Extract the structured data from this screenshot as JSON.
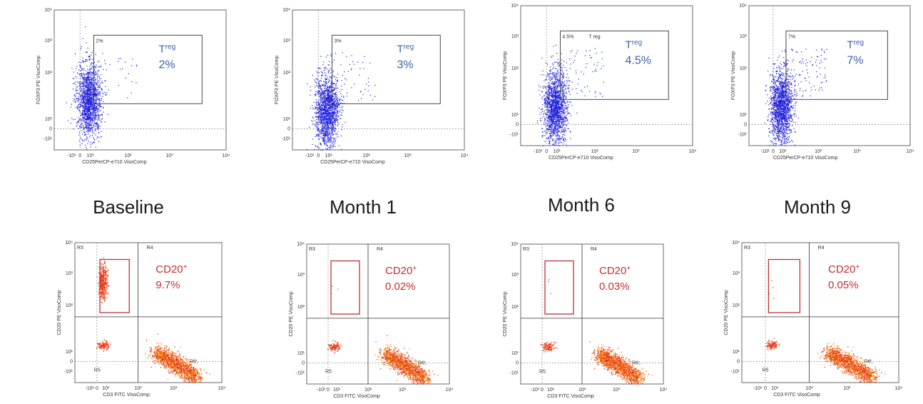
{
  "timepoints": [
    "Baseline",
    "Month 1",
    "Month 6",
    "Month 9"
  ],
  "colors": {
    "treg_dots": "#1a1adb",
    "treg_text": "#3b5fa6",
    "cd20_text": "#c0302f",
    "cd20_dots": "#e8401c",
    "gate_red": "#c0302f"
  },
  "chart_data": [
    {
      "type": "scatter",
      "panel": "Baseline Treg",
      "xlabel": "CD25PerCP-e710 VisoComp",
      "ylabel": "FOXP3 PE VisoComp",
      "x_ticks": [
        "-10¹",
        "0",
        "10¹",
        "10²",
        "10³",
        "10⁴"
      ],
      "y_ticks": [
        "10⁴",
        "10³",
        "10²",
        "10¹",
        "0",
        "-10¹"
      ],
      "gate_label": "2%",
      "annotation_name": "T",
      "annotation_sup": "reg",
      "annotation_value": "2%",
      "treg_percent": 2
    },
    {
      "type": "scatter",
      "panel": "Month 1 Treg",
      "xlabel": "CD25PerCP-e710 VisoComp",
      "ylabel": "FOXP3 PE VisoComp",
      "x_ticks": [
        "-10¹",
        "0",
        "10¹",
        "10²",
        "10³",
        "10⁴"
      ],
      "y_ticks": [
        "10⁴",
        "10³",
        "10²",
        "10¹",
        "0",
        "-10¹"
      ],
      "gate_label": "3%",
      "annotation_name": "T",
      "annotation_sup": "reg",
      "annotation_value": "3%",
      "treg_percent": 3
    },
    {
      "type": "scatter",
      "panel": "Month 6 Treg",
      "xlabel": "CD25PerCP-e710 VisoComp",
      "ylabel": "FOXP3 PE VisoComp",
      "x_ticks": [
        "-10¹",
        "0",
        "10¹",
        "10²",
        "10³",
        "10⁴"
      ],
      "y_ticks": [
        "10⁴",
        "10³",
        "10²",
        "10¹",
        "0",
        "-10¹"
      ],
      "gate_label": "4.5%",
      "gate_extra": "T reg",
      "annotation_name": "T",
      "annotation_sup": "reg",
      "annotation_value": "4.5%",
      "treg_percent": 4.5
    },
    {
      "type": "scatter",
      "panel": "Month 9 Treg",
      "xlabel": "CD25PerCP-e710 VisoComp",
      "ylabel": "FOXP3 PE VisoComp",
      "x_ticks": [
        "-10¹",
        "0",
        "10¹",
        "10²",
        "10³",
        "10⁴"
      ],
      "y_ticks": [
        "10⁴",
        "10³",
        "10²",
        "10¹",
        "0",
        "-10¹"
      ],
      "gate_label": "7%",
      "annotation_name": "T",
      "annotation_sup": "reg",
      "annotation_value": "7%",
      "treg_percent": 7
    },
    {
      "type": "scatter",
      "panel": "Baseline CD20",
      "xlabel": "CD3 FITC VisoComp",
      "ylabel": "CD20 PE VisoComp",
      "x_ticks": [
        "-10¹",
        "0",
        "10¹",
        "10²",
        "10³",
        "10⁴"
      ],
      "y_ticks": [
        "10⁴",
        "10³",
        "10²",
        "10¹",
        "0",
        "-10¹"
      ],
      "regions": [
        "R3",
        "R4",
        "R5",
        "R6"
      ],
      "annotation_name": "CD20",
      "annotation_sup": "+",
      "annotation_value": "9.7%",
      "cd20_percent": 9.7
    },
    {
      "type": "scatter",
      "panel": "Month 1 CD20",
      "xlabel": "CD3 FITC VisoComp",
      "ylabel": "CD20 PE VisoComp",
      "x_ticks": [
        "-10¹",
        "0",
        "10¹",
        "10²",
        "10³",
        "10⁴"
      ],
      "y_ticks": [
        "10⁴",
        "10³",
        "10²",
        "10¹",
        "0",
        "-10¹"
      ],
      "regions": [
        "R3",
        "R4",
        "R5",
        "R6"
      ],
      "annotation_name": "CD20",
      "annotation_sup": "+",
      "annotation_value": "0.02%",
      "cd20_percent": 0.02
    },
    {
      "type": "scatter",
      "panel": "Month 6 CD20",
      "xlabel": "CD3 FITC VisoComp",
      "ylabel": "CD20 PE VisoComp",
      "x_ticks": [
        "-10¹",
        "0",
        "10¹",
        "10²",
        "10³",
        "10⁴"
      ],
      "y_ticks": [
        "10⁴",
        "10³",
        "10²",
        "10¹",
        "0",
        "-10¹"
      ],
      "regions": [
        "R3",
        "R4",
        "R5",
        "R6"
      ],
      "annotation_name": "CD20",
      "annotation_sup": "+",
      "annotation_value": "0.03%",
      "cd20_percent": 0.03
    },
    {
      "type": "scatter",
      "panel": "Month 9 CD20",
      "xlabel": "CD3 FITC VisoComp",
      "ylabel": "CD20 PE VisoComp",
      "x_ticks": [
        "-10¹",
        "0",
        "10¹",
        "10²",
        "10³",
        "10⁴"
      ],
      "y_ticks": [
        "10⁴",
        "10³",
        "10²",
        "10¹",
        "0",
        "-10¹"
      ],
      "regions": [
        "R3",
        "R4",
        "R5",
        "R6"
      ],
      "annotation_name": "CD20",
      "annotation_sup": "+",
      "annotation_value": "0.05%",
      "cd20_percent": 0.05
    }
  ]
}
